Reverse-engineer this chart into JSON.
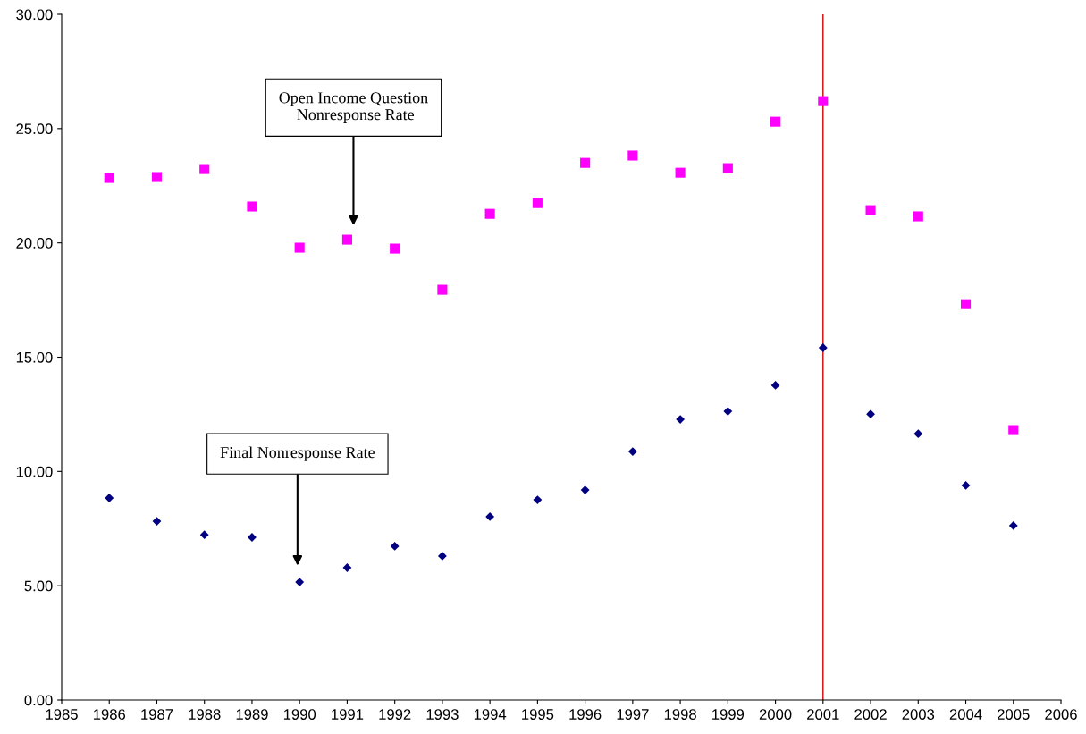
{
  "chart_data": {
    "type": "scatter",
    "x": [
      1986,
      1987,
      1988,
      1989,
      1990,
      1991,
      1992,
      1993,
      1994,
      1995,
      1996,
      1997,
      1998,
      1999,
      2000,
      2001,
      2002,
      2003,
      2004,
      2005
    ],
    "series": [
      {
        "color": "#ff00ff",
        "marker": "square",
        "values": [
          22.84,
          22.88,
          23.23,
          21.59,
          19.79,
          20.14,
          19.75,
          17.95,
          21.27,
          21.74,
          23.5,
          23.82,
          23.07,
          23.27,
          25.3,
          26.2,
          21.43,
          21.16,
          17.32,
          11.81
        ]
      },
      {
        "color": "#000080",
        "marker": "diamond",
        "values": [
          8.84,
          7.82,
          7.23,
          7.12,
          5.16,
          5.79,
          6.73,
          6.3,
          8.02,
          8.76,
          9.19,
          10.87,
          12.28,
          12.63,
          13.77,
          15.41,
          12.51,
          11.65,
          9.39,
          7.63
        ]
      }
    ],
    "xlim": [
      1985,
      2006
    ],
    "xticks": [
      1985,
      1986,
      1987,
      1988,
      1989,
      1990,
      1991,
      1992,
      1993,
      1994,
      1995,
      1996,
      1997,
      1998,
      1999,
      2000,
      2001,
      2002,
      2003,
      2004,
      2005,
      2006
    ],
    "ylim": [
      0,
      30
    ],
    "yticks": [
      {
        "value": 0,
        "label": "0.00"
      },
      {
        "value": 5,
        "label": "5.00"
      },
      {
        "value": 10,
        "label": "10.00"
      },
      {
        "value": 15,
        "label": "15.00"
      },
      {
        "value": 20,
        "label": "20.00"
      },
      {
        "value": 25,
        "label": "25.00"
      },
      {
        "value": 30,
        "label": "30.00"
      }
    ],
    "ref_lines": [
      {
        "axis": "x",
        "value": 2001,
        "color": "#cc0000"
      }
    ],
    "annotations": [
      "Open Income Question\n Nonresponse Rate",
      "Final Nonresponse Rate"
    ],
    "grid": false,
    "legend": false
  }
}
